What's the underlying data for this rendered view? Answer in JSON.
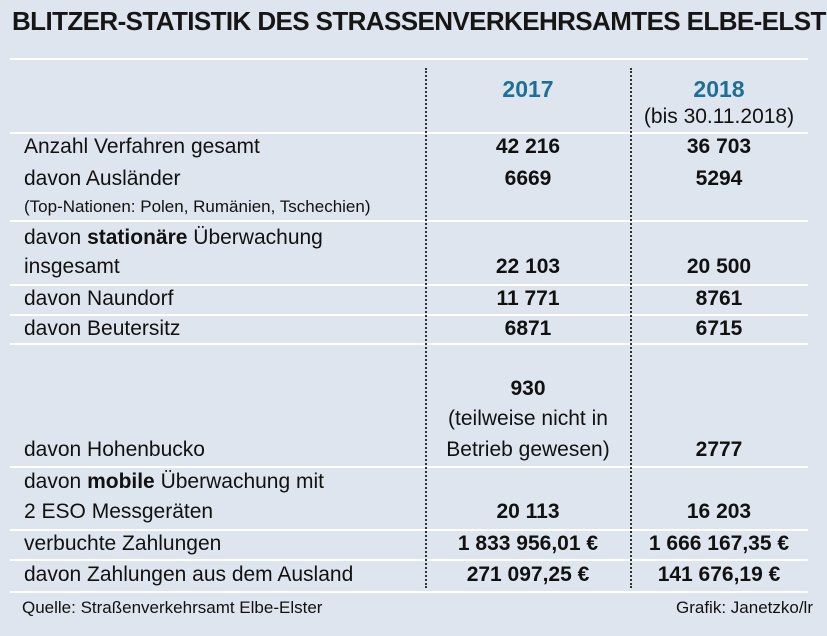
{
  "title": "BLITZER-STATISTIK DES STRASSENVERKEHRSAMTES ELBE-ELSTER",
  "header": {
    "col1": "2017",
    "col2": "2018",
    "col2_note": "(bis 30.11.2018)"
  },
  "rows": {
    "r1": {
      "label": "Anzahl Verfahren gesamt",
      "v2017": "42 216",
      "v2018": "36 703"
    },
    "r2": {
      "label": "davon Ausländer",
      "note": "(Top-Nationen: Polen, Rumänien, Tschechien)",
      "v2017": "6669",
      "v2018": "5294"
    },
    "r3": {
      "label_pre": "davon ",
      "label_bold": "stationäre",
      "label_post": " Überwachung",
      "label_line2": "insgesamt",
      "v2017": "22 103",
      "v2018": "20 500"
    },
    "r4": {
      "label": "davon Naundorf",
      "v2017": "11 771",
      "v2018": "8761"
    },
    "r5": {
      "label": "davon Beutersitz",
      "v2017": "6871",
      "v2018": "6715"
    },
    "r6": {
      "label": "davon Hohenbucko",
      "v2017": "930",
      "v2017_note1": "(teilweise nicht in",
      "v2017_note2": "Betrieb gewesen)",
      "v2018": "2777"
    },
    "r7": {
      "label_pre": "davon ",
      "label_bold": "mobile",
      "label_post": " Überwachung mit",
      "label_line2": "2 ESO Messgeräten",
      "v2017": "20 113",
      "v2018": "16 203"
    },
    "r8": {
      "label": "verbuchte Zahlungen",
      "v2017": "1 833 956,01 €",
      "v2018": "1 666 167,35 €"
    },
    "r9": {
      "label": "davon Zahlungen aus dem Ausland",
      "v2017": "271 097,25 €",
      "v2018": "141 676,19 €"
    }
  },
  "footer": {
    "source": "Quelle: Straßenverkehrsamt Elbe-Elster",
    "credit": "Grafik: Janetzko/lr"
  },
  "colors": {
    "year": "#1e6f96",
    "background": "#dfe5ef"
  }
}
